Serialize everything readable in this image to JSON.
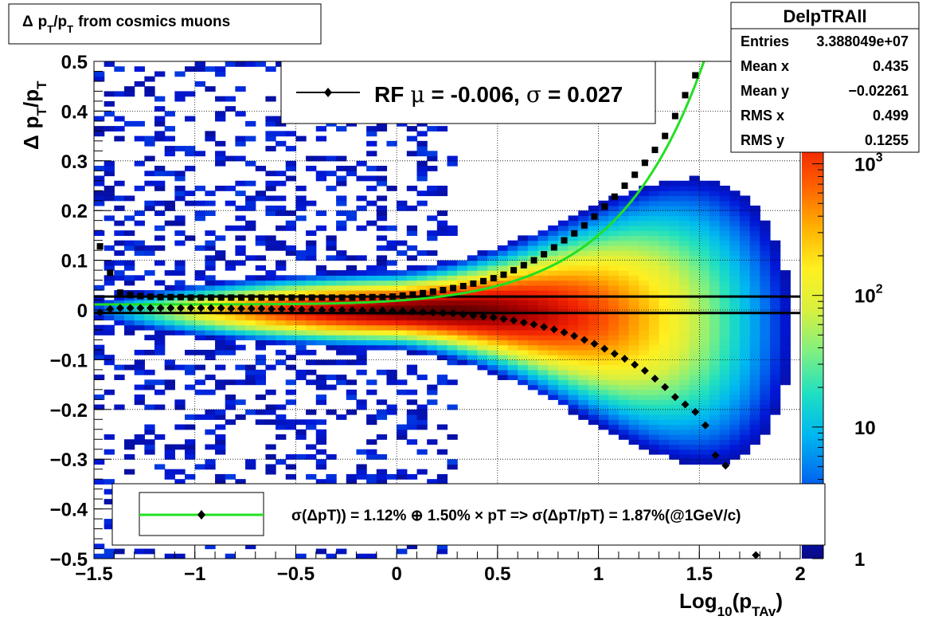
{
  "chart_data": {
    "type": "heatmap",
    "title_parts": {
      "delta": "Δ",
      "p": "p",
      "T": "T",
      "from_text": "from cosmics muons"
    },
    "ylabel_parts": {
      "delta": "Δ",
      "p": "p",
      "T": "T"
    },
    "xlabel_parts": {
      "log": "Log",
      "sub10": "10",
      "paren_open": "(p",
      "sub": "TAv",
      "paren_close": ")"
    },
    "xlim": [
      -1.5,
      2.0
    ],
    "ylim": [
      -0.5,
      0.5
    ],
    "x_ticks": [
      {
        "value": -1.5,
        "label": "−1.5"
      },
      {
        "value": -1.0,
        "label": "−1"
      },
      {
        "value": -0.5,
        "label": "−0.5"
      },
      {
        "value": 0.0,
        "label": "0"
      },
      {
        "value": 0.5,
        "label": "0.5"
      },
      {
        "value": 1.0,
        "label": "1"
      },
      {
        "value": 1.5,
        "label": "1.5"
      },
      {
        "value": 2.0,
        "label": "2"
      }
    ],
    "y_ticks": [
      {
        "value": 0.5,
        "label": "0.5"
      },
      {
        "value": 0.4,
        "label": "0.4"
      },
      {
        "value": 0.3,
        "label": "0.3"
      },
      {
        "value": 0.2,
        "label": "0.2"
      },
      {
        "value": 0.1,
        "label": "0.1"
      },
      {
        "value": 0.0,
        "label": "0"
      },
      {
        "value": -0.1,
        "label": "−0.1"
      },
      {
        "value": -0.2,
        "label": "−0.2"
      },
      {
        "value": -0.3,
        "label": "−0.3"
      },
      {
        "value": -0.4,
        "label": "−0.4"
      },
      {
        "value": -0.5,
        "label": "−0.5"
      }
    ],
    "z_scale": "log",
    "z_range": [
      1,
      6000
    ],
    "z_ticks": [
      {
        "value": 1,
        "label": "1",
        "sup": ""
      },
      {
        "value": 10,
        "label": "10",
        "sup": ""
      },
      {
        "value": 100,
        "label": "10",
        "sup": "2"
      },
      {
        "value": 1000,
        "label": "10",
        "sup": "3"
      }
    ],
    "grid": true,
    "sigma_points": {
      "x": [
        -1.47,
        -1.42,
        -1.37,
        -1.32,
        -1.27,
        -1.22,
        -1.17,
        -1.12,
        -1.07,
        -1.02,
        -0.97,
        -0.92,
        -0.87,
        -0.82,
        -0.77,
        -0.72,
        -0.67,
        -0.62,
        -0.57,
        -0.52,
        -0.47,
        -0.42,
        -0.37,
        -0.32,
        -0.27,
        -0.22,
        -0.17,
        -0.12,
        -0.07,
        -0.02,
        0.03,
        0.08,
        0.13,
        0.18,
        0.23,
        0.28,
        0.33,
        0.38,
        0.43,
        0.48,
        0.53,
        0.58,
        0.63,
        0.68,
        0.73,
        0.78,
        0.83,
        0.88,
        0.93,
        0.98,
        1.03,
        1.08,
        1.13,
        1.18,
        1.23,
        1.28,
        1.33,
        1.38,
        1.43,
        1.48
      ],
      "y": [
        0.128,
        0.075,
        0.035,
        0.03,
        0.028,
        0.027,
        0.026,
        0.026,
        0.026,
        0.025,
        0.025,
        0.025,
        0.025,
        0.025,
        0.025,
        0.025,
        0.025,
        0.025,
        0.025,
        0.025,
        0.025,
        0.025,
        0.025,
        0.025,
        0.025,
        0.025,
        0.026,
        0.026,
        0.026,
        0.027,
        0.029,
        0.031,
        0.034,
        0.037,
        0.04,
        0.044,
        0.048,
        0.053,
        0.058,
        0.064,
        0.071,
        0.08,
        0.09,
        0.1,
        0.112,
        0.126,
        0.14,
        0.154,
        0.17,
        0.188,
        0.208,
        0.228,
        0.25,
        0.272,
        0.296,
        0.322,
        0.35,
        0.39,
        0.432,
        0.472
      ]
    },
    "mean_points": {
      "x": [
        -1.47,
        -1.42,
        -1.37,
        -1.32,
        -1.27,
        -1.22,
        -1.17,
        -1.12,
        -1.07,
        -1.02,
        -0.97,
        -0.92,
        -0.87,
        -0.82,
        -0.77,
        -0.72,
        -0.67,
        -0.62,
        -0.57,
        -0.52,
        -0.47,
        -0.42,
        -0.37,
        -0.32,
        -0.27,
        -0.22,
        -0.17,
        -0.12,
        -0.07,
        -0.02,
        0.03,
        0.08,
        0.13,
        0.18,
        0.23,
        0.28,
        0.33,
        0.38,
        0.43,
        0.48,
        0.53,
        0.58,
        0.63,
        0.68,
        0.73,
        0.78,
        0.83,
        0.88,
        0.93,
        0.98,
        1.03,
        1.08,
        1.13,
        1.18,
        1.23,
        1.28,
        1.33,
        1.38,
        1.43,
        1.48,
        1.53,
        1.58,
        1.63,
        1.78
      ],
      "y": [
        -0.005,
        0.002,
        0.004,
        0.004,
        0.004,
        0.004,
        0.004,
        0.004,
        0.004,
        0.004,
        0.004,
        0.004,
        0.004,
        0.003,
        0.003,
        0.003,
        0.003,
        0.002,
        0.002,
        0.002,
        0.001,
        0.001,
        0.0,
        0.0,
        0.0,
        0.0,
        -0.001,
        -0.001,
        -0.001,
        -0.002,
        -0.002,
        -0.003,
        -0.004,
        -0.005,
        -0.006,
        -0.007,
        -0.009,
        -0.011,
        -0.013,
        -0.015,
        -0.018,
        -0.021,
        -0.025,
        -0.029,
        -0.034,
        -0.039,
        -0.045,
        -0.052,
        -0.06,
        -0.068,
        -0.078,
        -0.088,
        -0.098,
        -0.11,
        -0.122,
        -0.138,
        -0.155,
        -0.175,
        -0.19,
        -0.205,
        -0.232,
        -0.292,
        -0.313,
        -0.493
      ]
    },
    "horizontal_lines": [
      0.027,
      -0.006
    ],
    "fit_curve": {
      "a_percent": 1.12,
      "b_percent": 1.5
    },
    "legend_top": {
      "prefix": "RF",
      "mu": "μ",
      "mu_text": "= -0.006,",
      "sigma": "σ",
      "sigma_text": "=   0.027"
    },
    "legend_bottom": {
      "text": "σ(ΔpT)) =  1.12% ⊕  1.50% × pT => σ(ΔpT/pT) =  1.87%(@1GeV/c)"
    },
    "stats_box": {
      "title": "DelpTRAll",
      "rows": [
        {
          "label": "Entries",
          "value": "3.388049e+07"
        },
        {
          "label": "Mean x",
          "value": "0.435"
        },
        {
          "label": "Mean y",
          "value": "−0.02261"
        },
        {
          "label": "RMS x",
          "value": "0.499"
        },
        {
          "label": "RMS y",
          "value": "0.1255"
        }
      ]
    },
    "colors": {
      "fit_curve": "#22e022",
      "markers": "#000000",
      "palette": [
        "#0a0a84",
        "#0018d8",
        "#0070f0",
        "#00b8f0",
        "#20e0c0",
        "#80f080",
        "#d8f040",
        "#fff020",
        "#ffb000",
        "#ff6000",
        "#f02000",
        "#b00000",
        "#400000"
      ]
    }
  }
}
